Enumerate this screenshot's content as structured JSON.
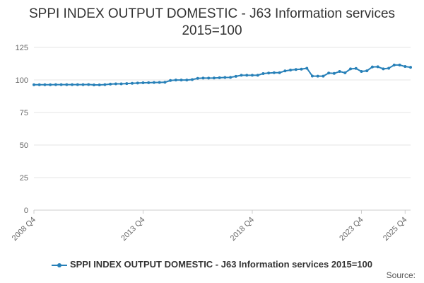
{
  "chart_data": {
    "type": "line",
    "title_line1": "SPPI INDEX OUTPUT DOMESTIC - J63 Information services",
    "title_line2": "2015=100",
    "xlabel": "",
    "ylabel": "",
    "ylim": [
      0,
      125
    ],
    "yticks": [
      0,
      25,
      50,
      75,
      100,
      125
    ],
    "xtick_labels": [
      "2008 Q4",
      "2013 Q4",
      "2018 Q4",
      "2023 Q4",
      "2025 Q4"
    ],
    "xtick_indices": [
      0,
      20,
      40,
      60,
      68
    ],
    "grid": "horizontal",
    "legend_position": "bottom",
    "series": [
      {
        "name": "SPPI INDEX OUTPUT DOMESTIC - J63 Information services 2015=100",
        "color": "#2780b8",
        "values": [
          96.3,
          96.3,
          96.3,
          96.3,
          96.4,
          96.4,
          96.4,
          96.4,
          96.4,
          96.4,
          96.5,
          96.2,
          96.2,
          96.4,
          96.8,
          97.0,
          97.0,
          97.2,
          97.4,
          97.6,
          97.8,
          97.9,
          98.0,
          98.1,
          98.2,
          99.6,
          99.9,
          99.9,
          99.9,
          100.3,
          101.2,
          101.4,
          101.4,
          101.5,
          101.7,
          101.9,
          102.0,
          102.8,
          103.6,
          103.6,
          103.6,
          103.6,
          104.9,
          105.3,
          105.6,
          105.6,
          106.9,
          107.6,
          108.0,
          108.3,
          109.0,
          103.0,
          102.9,
          102.9,
          105.3,
          105.0,
          106.5,
          105.5,
          108.5,
          108.8,
          106.5,
          107.0,
          110.0,
          110.1,
          108.5,
          109.0,
          111.5,
          111.5,
          110.3,
          109.7
        ]
      }
    ]
  },
  "legend_label": "SPPI INDEX OUTPUT DOMESTIC - J63 Information services 2015=100",
  "source_label": "Source:"
}
